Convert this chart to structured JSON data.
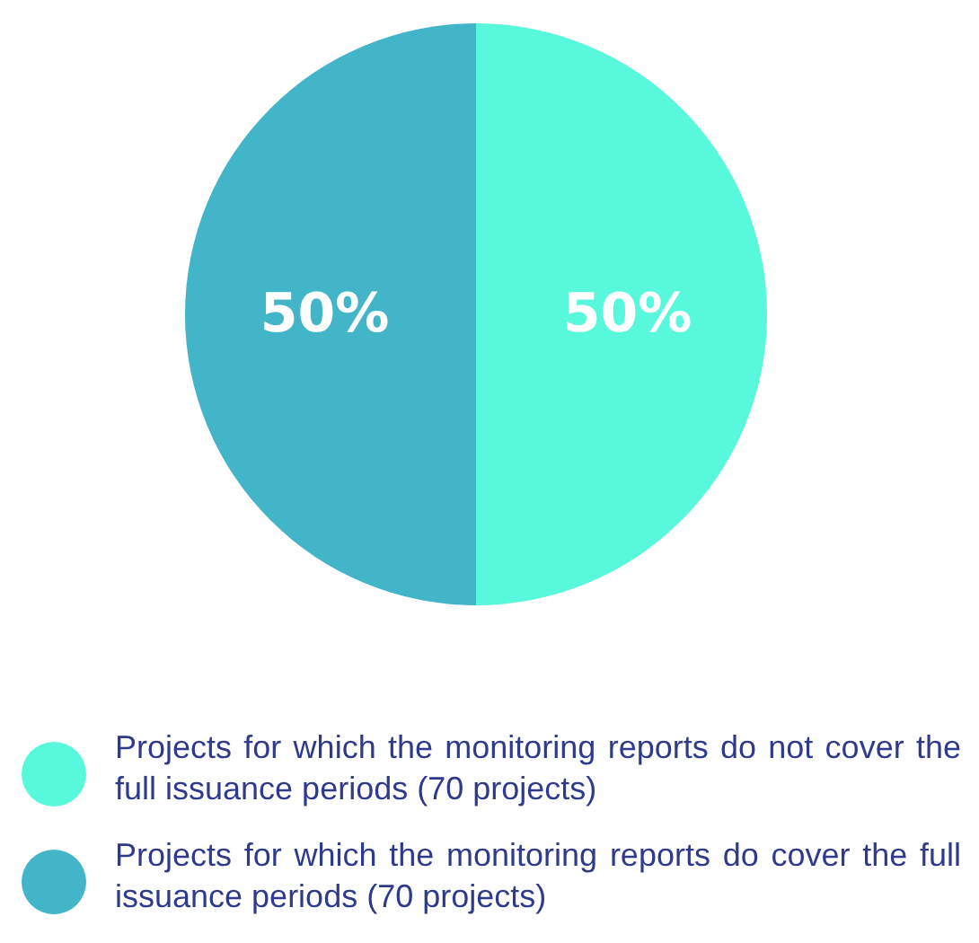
{
  "chart_data": {
    "type": "pie",
    "categories": [
      "Projects for which the monitoring reports do not cover the full issuance periods (70 projects)",
      "Projects for which the monitoring reports do cover the full issuance periods (70 projects)"
    ],
    "values": [
      50,
      50
    ],
    "colors": [
      "#58f8dc",
      "#42b6c8"
    ],
    "value_labels": [
      "50%",
      "50%"
    ],
    "legend": "bottom"
  }
}
